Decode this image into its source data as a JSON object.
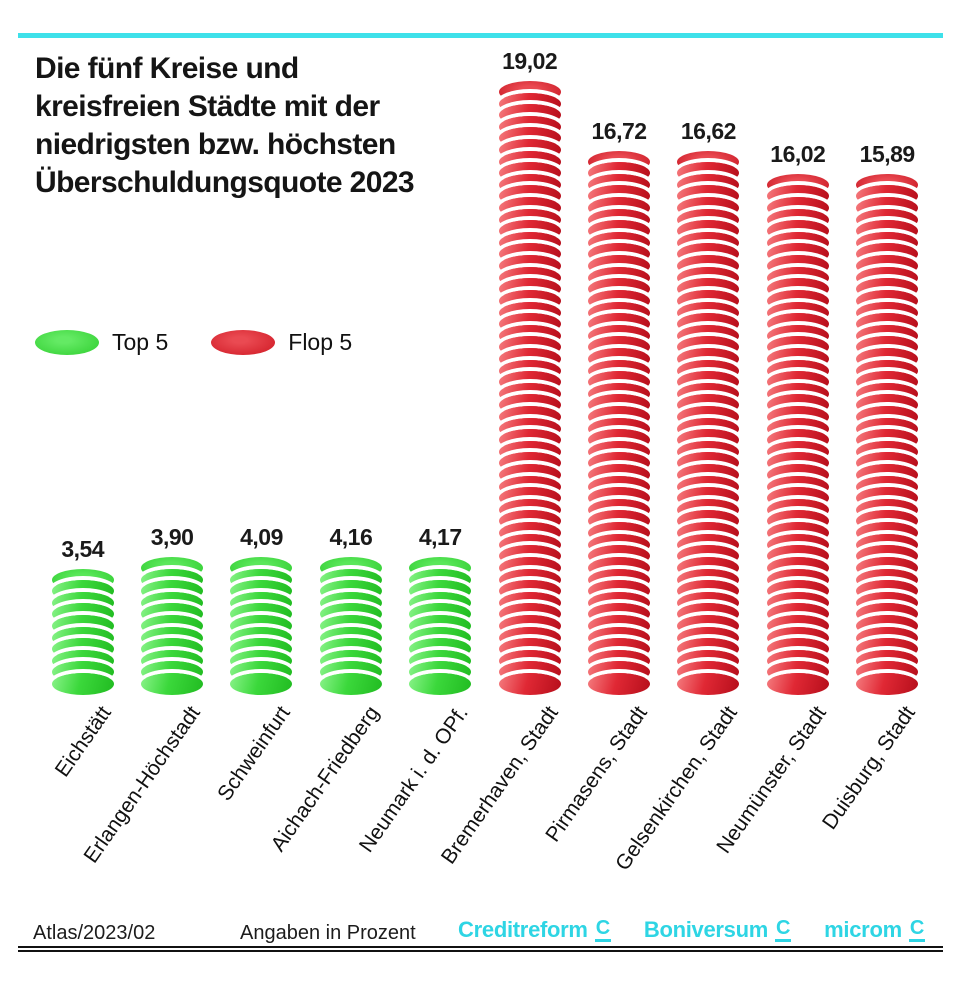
{
  "colors": {
    "top_line": "#3ee1ea",
    "logo_cyan": "#2ed5e4",
    "green": "#35d435",
    "red": "#dd2430",
    "text": "#111111"
  },
  "title": {
    "lines": [
      "Die fünf Kreise und",
      "kreisfreien Städte mit der",
      "niedrigsten bzw. höchsten",
      "Überschuldungsquote 2023"
    ]
  },
  "legend": {
    "items": [
      {
        "label": "Top 5",
        "color_key": "green"
      },
      {
        "label": "Flop 5",
        "color_key": "red"
      }
    ]
  },
  "chart_data": {
    "type": "bar",
    "title": "Die fünf Kreise und kreisfreien Städte mit der niedrigsten bzw. höchsten Überschuldungsquote 2023",
    "unit": "Prozent",
    "ylim": [
      0,
      20
    ],
    "grid": false,
    "legend_position": "middle-left",
    "series": [
      {
        "name": "Top 5",
        "color": "#35d435",
        "color_key": "green",
        "categories": [
          "Eichstätt",
          "Erlangen-Höchstadt",
          "Schweinfurt",
          "Aichach-Friedberg",
          "Neumark i. d. OPf."
        ],
        "values": [
          3.54,
          3.9,
          4.09,
          4.16,
          4.17
        ],
        "displays": [
          "3,54",
          "3,90",
          "4,09",
          "4,16",
          "4,17"
        ]
      },
      {
        "name": "Flop 5",
        "color": "#dd2430",
        "color_key": "red",
        "categories": [
          "Bremerhaven, Stadt",
          "Pirmasens, Stadt",
          "Gelsenkirchen, Stadt",
          "Neumünster, Stadt",
          "Duisburg, Stadt"
        ],
        "values": [
          19.02,
          16.72,
          16.62,
          16.02,
          15.89
        ],
        "displays": [
          "19,02",
          "16,72",
          "16,62",
          "16,02",
          "15,89"
        ]
      }
    ]
  },
  "footer": {
    "source": "Atlas/2023/02",
    "note": "Angaben in Prozent",
    "logos": [
      "Creditreform",
      "Boniversum",
      "microm"
    ],
    "logo_mark": "C"
  }
}
